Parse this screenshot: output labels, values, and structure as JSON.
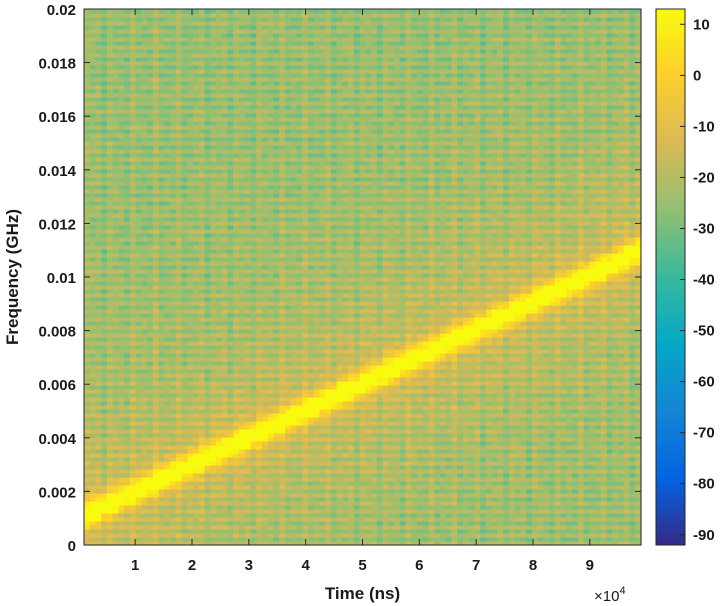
{
  "chart_data": {
    "type": "heatmap",
    "title": "",
    "xlabel": "Time (ns)",
    "ylabel": "Frequency (GHz)",
    "x_multiplier": "×10",
    "x_multiplier_exp": "4",
    "xlim": [
      0.1,
      9.9
    ],
    "ylim": [
      0,
      0.02
    ],
    "x_ticks": [
      1,
      2,
      3,
      4,
      5,
      6,
      7,
      8,
      9
    ],
    "x_tick_labels": [
      "1",
      "2",
      "3",
      "4",
      "5",
      "6",
      "7",
      "8",
      "9"
    ],
    "y_ticks": [
      0,
      0.002,
      0.004,
      0.006,
      0.008,
      0.01,
      0.012,
      0.014,
      0.016,
      0.018,
      0.02
    ],
    "y_tick_labels": [
      "0",
      "0.002",
      "0.004",
      "0.006",
      "0.008",
      "0.01",
      "0.012",
      "0.014",
      "0.016",
      "0.018",
      "0.02"
    ],
    "colorbar": {
      "colormap": "parula",
      "clim": [
        -92,
        13
      ],
      "ticks": [
        10,
        0,
        -10,
        -20,
        -30,
        -40,
        -50,
        -60,
        -70,
        -80,
        -90
      ],
      "tick_labels": [
        "10",
        "0",
        "-10",
        "-20",
        "-30",
        "-40",
        "-50",
        "-60",
        "-70",
        "-80",
        "-90"
      ]
    },
    "ridge": {
      "description": "linear chirp",
      "start": {
        "x": 0.1,
        "y": 0.0011
      },
      "end": {
        "x": 9.9,
        "y": 0.011
      },
      "peak_value": 12,
      "background_value": -24
    }
  }
}
